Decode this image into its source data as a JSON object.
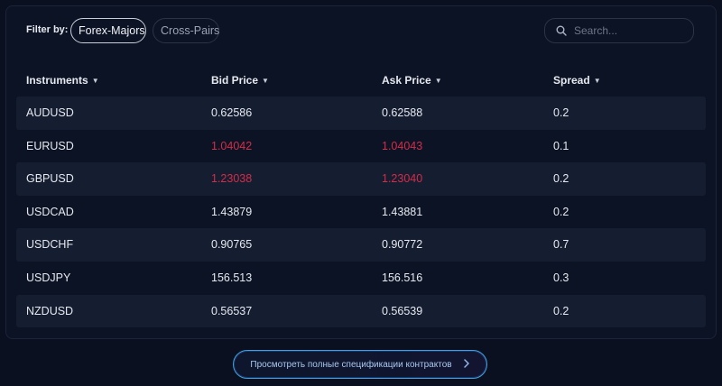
{
  "filter": {
    "label": "Filter by:",
    "chips": [
      {
        "label": "Forex-Majors",
        "active": true
      },
      {
        "label": "Cross-Pairs",
        "active": false
      }
    ]
  },
  "search": {
    "placeholder": "Search..."
  },
  "table": {
    "columns": [
      {
        "label": "Instruments",
        "sort_icon": "caret-down-icon"
      },
      {
        "label": "Bid Price",
        "sort_icon": "caret-down-icon"
      },
      {
        "label": "Ask Price",
        "sort_icon": "caret-down-icon"
      },
      {
        "label": "Spread",
        "sort_icon": "caret-down-icon"
      }
    ],
    "rows": [
      {
        "instrument": "AUDUSD",
        "bid": "0.62586",
        "ask": "0.62588",
        "spread": "0.2",
        "direction": "neutral"
      },
      {
        "instrument": "EURUSD",
        "bid": "1.04042",
        "ask": "1.04043",
        "spread": "0.1",
        "direction": "down"
      },
      {
        "instrument": "GBPUSD",
        "bid": "1.23038",
        "ask": "1.23040",
        "spread": "0.2",
        "direction": "down"
      },
      {
        "instrument": "USDCAD",
        "bid": "1.43879",
        "ask": "1.43881",
        "spread": "0.2",
        "direction": "neutral"
      },
      {
        "instrument": "USDCHF",
        "bid": "0.90765",
        "ask": "0.90772",
        "spread": "0.7",
        "direction": "neutral"
      },
      {
        "instrument": "USDJPY",
        "bid": "156.513",
        "ask": "156.516",
        "spread": "0.3",
        "direction": "neutral"
      },
      {
        "instrument": "NZDUSD",
        "bid": "0.56537",
        "ask": "0.56539",
        "spread": "0.2",
        "direction": "neutral"
      }
    ]
  },
  "cta": {
    "label": "Просмотреть полные спецификации контрактов",
    "icon": "chevron-right-icon"
  },
  "colors": {
    "background": "#0a1020",
    "alt_row": "#151d30",
    "price_down": "#d22d49",
    "cta_border": "#3aa6d8"
  }
}
